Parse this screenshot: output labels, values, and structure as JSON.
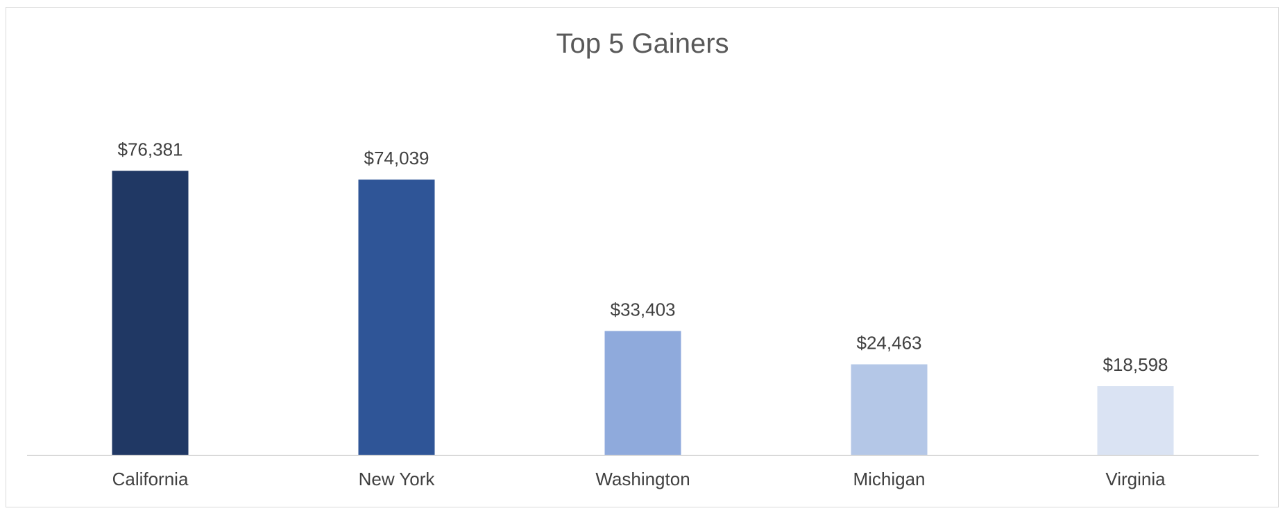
{
  "chart_data": {
    "type": "bar",
    "title": "Top 5 Gainers",
    "categories": [
      "California",
      "New York",
      "Washington",
      "Michigan",
      "Virginia"
    ],
    "values": [
      76381,
      74039,
      33403,
      24463,
      18598
    ],
    "value_labels": [
      "$76,381",
      "$74,039",
      "$33,403",
      "$24,463",
      "$18,598"
    ],
    "colors": [
      "#203864",
      "#2f5597",
      "#8faadc",
      "#b4c7e7",
      "#dae3f3"
    ],
    "xlabel": "",
    "ylabel": "",
    "ylim": [
      0,
      80000
    ],
    "grid": false,
    "legend": "none"
  }
}
